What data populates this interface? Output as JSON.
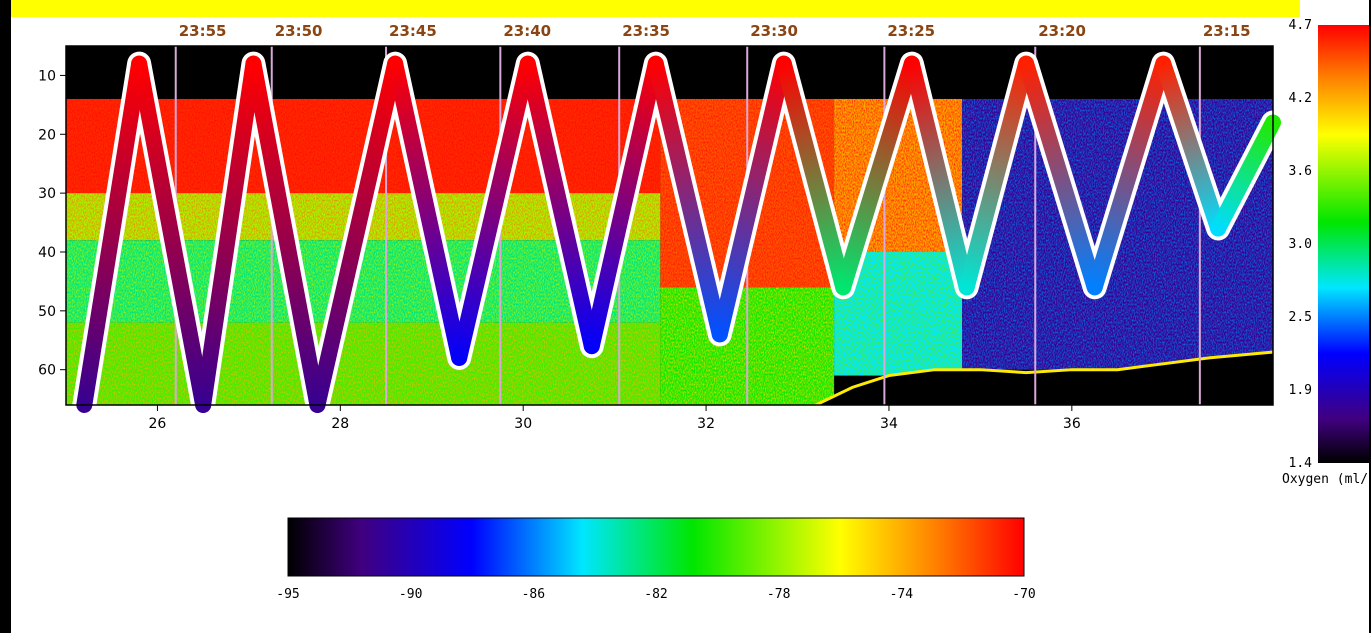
{
  "chart_data": {
    "type": "heatmap",
    "title": "",
    "xlabel": "",
    "ylabel": "",
    "xlim": [
      25.0,
      38.2
    ],
    "ylim": [
      5,
      66
    ],
    "y_inverted": true,
    "x_ticks": [
      26,
      28,
      30,
      32,
      34,
      36
    ],
    "x_tick_labels": [
      "26",
      "28",
      "30",
      "32",
      "34",
      "36"
    ],
    "y_ticks": [
      10,
      20,
      30,
      40,
      50,
      60
    ],
    "y_tick_labels": [
      "10",
      "20",
      "30",
      "40",
      "50",
      "60"
    ],
    "time_markers": [
      {
        "label": "23:55",
        "x": 26.2
      },
      {
        "label": "23:50",
        "x": 27.25
      },
      {
        "label": "23:45",
        "x": 28.5
      },
      {
        "label": "23:40",
        "x": 29.75
      },
      {
        "label": "23:35",
        "x": 31.05
      },
      {
        "label": "23:30",
        "x": 32.45
      },
      {
        "label": "23:25",
        "x": 33.95
      },
      {
        "label": "23:20",
        "x": 35.6
      },
      {
        "label": "23:15",
        "x": 37.4
      }
    ],
    "towyo_track": {
      "name": "Oxygen (ml/l)",
      "x": [
        25.2,
        25.8,
        26.5,
        27.05,
        27.75,
        28.6,
        29.3,
        30.05,
        30.75,
        31.45,
        32.15,
        32.85,
        33.5,
        34.25,
        34.85,
        35.5,
        36.25,
        37.0,
        37.6,
        38.2
      ],
      "depth": [
        66,
        8,
        66,
        8,
        66,
        8,
        58,
        8,
        56,
        8,
        54,
        8,
        46,
        8,
        46,
        8,
        46,
        8,
        36,
        18
      ],
      "oxygen": [
        1.8,
        4.7,
        1.8,
        4.7,
        1.8,
        4.7,
        2.2,
        4.7,
        2.2,
        4.7,
        2.4,
        4.7,
        3.0,
        4.7,
        2.8,
        4.6,
        2.5,
        4.6,
        2.7,
        3.3
      ]
    },
    "bottom_depth": {
      "x": [
        33.2,
        33.6,
        34.0,
        34.5,
        35.0,
        35.5,
        36.0,
        36.5,
        37.0,
        37.5,
        38.2
      ],
      "depth": [
        66,
        63,
        61,
        60,
        60,
        60.5,
        60,
        60,
        59,
        58,
        57
      ]
    },
    "echo_layers": [
      {
        "x0": 25.0,
        "x1": 31.5,
        "d0": 14,
        "d1": 30,
        "sv": -71
      },
      {
        "x0": 25.0,
        "x1": 31.5,
        "d0": 30,
        "d1": 38,
        "sv": -78
      },
      {
        "x0": 25.0,
        "x1": 31.5,
        "d0": 38,
        "d1": 52,
        "sv": -83
      },
      {
        "x0": 25.0,
        "x1": 31.5,
        "d0": 52,
        "d1": 66,
        "sv": -80
      },
      {
        "x0": 31.5,
        "x1": 33.4,
        "d0": 14,
        "d1": 46,
        "sv": -72
      },
      {
        "x0": 31.5,
        "x1": 33.4,
        "d0": 46,
        "d1": 66,
        "sv": -81
      },
      {
        "x0": 33.4,
        "x1": 34.8,
        "d0": 14,
        "d1": 40,
        "sv": -74
      },
      {
        "x0": 33.4,
        "x1": 34.8,
        "d0": 40,
        "d1": 61,
        "sv": -85
      },
      {
        "x0": 34.8,
        "x1": 38.2,
        "d0": 14,
        "d1": 60,
        "sv": -92
      }
    ],
    "colorbar_sv": {
      "orientation": "horizontal",
      "range": [
        -95,
        -70
      ],
      "ticks": [
        "-95",
        "-90",
        "-86",
        "-82",
        "-78",
        "-74",
        "-70"
      ]
    },
    "colorbar_oxygen": {
      "orientation": "vertical",
      "range": [
        1.4,
        4.7
      ],
      "ticks": [
        "1.4",
        "1.9",
        "2.5",
        "3.0",
        "3.6",
        "4.2",
        "4.7"
      ],
      "label": "Oxygen (ml/l)"
    }
  }
}
